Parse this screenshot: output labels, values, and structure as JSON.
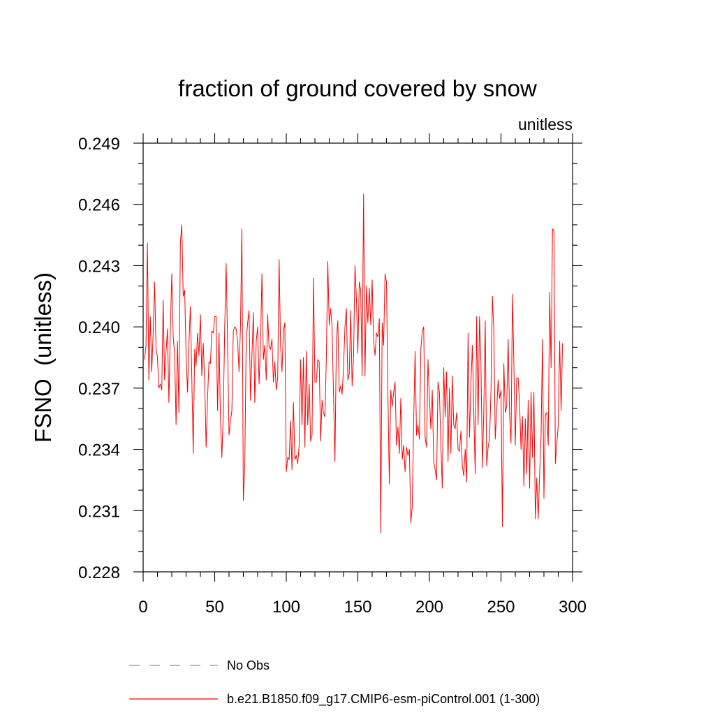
{
  "chart_data": {
    "type": "line",
    "title": "fraction of ground covered by snow",
    "units": "unitless",
    "ylabel": "FSNO  (unitless)",
    "xlabel": "",
    "xlim": [
      0,
      300
    ],
    "ylim": [
      0.228,
      0.249
    ],
    "xticks": [
      "0",
      "50",
      "100",
      "150",
      "200",
      "250",
      "300"
    ],
    "yticks": [
      "0.228",
      "0.231",
      "0.234",
      "0.237",
      "0.240",
      "0.243",
      "0.246",
      "0.249"
    ],
    "legend": [
      {
        "label": "No Obs",
        "style": "dashed",
        "color": "#8a84c8"
      },
      {
        "label": "b.e21.B1850.f09_g17.CMIP6-esm-piControl.001 (1-300)",
        "style": "solid",
        "color": "#ff0000"
      }
    ],
    "series": [
      {
        "name": "b.e21.B1850.f09_g17.CMIP6-esm-piControl.001 (1-300)",
        "color": "#ff0000",
        "x_start": 1,
        "values": [
          0.2384,
          0.2391,
          0.2441,
          0.2374,
          0.2405,
          0.2378,
          0.2397,
          0.2422,
          0.239,
          0.2385,
          0.237,
          0.2372,
          0.2369,
          0.2413,
          0.2374,
          0.2388,
          0.2399,
          0.2363,
          0.2398,
          0.2426,
          0.2395,
          0.2387,
          0.2352,
          0.2393,
          0.2358,
          0.2441,
          0.245,
          0.2415,
          0.2418,
          0.2387,
          0.2368,
          0.2392,
          0.241,
          0.2375,
          0.2338,
          0.2389,
          0.2381,
          0.2397,
          0.2386,
          0.2406,
          0.2376,
          0.2392,
          0.2373,
          0.2341,
          0.2365,
          0.2383,
          0.2382,
          0.2398,
          0.2397,
          0.2405,
          0.2405,
          0.2359,
          0.2397,
          0.2355,
          0.2336,
          0.2358,
          0.24,
          0.2431,
          0.2392,
          0.2347,
          0.2354,
          0.2359,
          0.2398,
          0.24,
          0.2399,
          0.2393,
          0.2378,
          0.24,
          0.2448,
          0.2315,
          0.2332,
          0.2393,
          0.2402,
          0.2408,
          0.2364,
          0.2386,
          0.2407,
          0.2363,
          0.2393,
          0.24,
          0.2372,
          0.2392,
          0.2426,
          0.2384,
          0.2391,
          0.2374,
          0.2406,
          0.239,
          0.2389,
          0.2394,
          0.2373,
          0.2383,
          0.2369,
          0.2375,
          0.2433,
          0.2391,
          0.2378,
          0.2398,
          0.2402,
          0.2329,
          0.2336,
          0.2335,
          0.2354,
          0.233,
          0.2363,
          0.2335,
          0.2337,
          0.2333,
          0.2342,
          0.2384,
          0.2352,
          0.2385,
          0.2341,
          0.2388,
          0.2352,
          0.2372,
          0.2344,
          0.2347,
          0.2424,
          0.2373,
          0.2373,
          0.2384,
          0.2383,
          0.2344,
          0.2364,
          0.2358,
          0.2356,
          0.2385,
          0.2432,
          0.2401,
          0.2409,
          0.24,
          0.2367,
          0.2334,
          0.2393,
          0.2403,
          0.2368,
          0.2371,
          0.2367,
          0.238,
          0.24,
          0.2409,
          0.2374,
          0.2377,
          0.2408,
          0.2371,
          0.2385,
          0.243,
          0.2414,
          0.2387,
          0.2422,
          0.2418,
          0.2376,
          0.2465,
          0.2376,
          0.242,
          0.2402,
          0.2419,
          0.2401,
          0.2423,
          0.2393,
          0.2386,
          0.2397,
          0.2395,
          0.2404,
          0.2299,
          0.2402,
          0.2391,
          0.2426,
          0.2422,
          0.2367,
          0.2323,
          0.2369,
          0.2361,
          0.2368,
          0.2373,
          0.2342,
          0.2351,
          0.2338,
          0.2365,
          0.2335,
          0.2342,
          0.2329,
          0.2341,
          0.2337,
          0.234,
          0.2304,
          0.2312,
          0.2354,
          0.2388,
          0.2347,
          0.2352,
          0.2345,
          0.2389,
          0.2398,
          0.24,
          0.2346,
          0.2341,
          0.2384,
          0.2365,
          0.235,
          0.2369,
          0.2334,
          0.233,
          0.2325,
          0.2373,
          0.2368,
          0.2342,
          0.2321,
          0.238,
          0.2356,
          0.2378,
          0.2334,
          0.237,
          0.2338,
          0.2376,
          0.2352,
          0.235,
          0.2358,
          0.234,
          0.2339,
          0.2349,
          0.2332,
          0.2327,
          0.234,
          0.2324,
          0.2397,
          0.2346,
          0.2372,
          0.2391,
          0.2358,
          0.2328,
          0.2405,
          0.2352,
          0.2405,
          0.2382,
          0.2331,
          0.2359,
          0.2403,
          0.2332,
          0.2341,
          0.2345,
          0.2368,
          0.2415,
          0.2398,
          0.2345,
          0.2359,
          0.2374,
          0.2365,
          0.2369,
          0.2302,
          0.2382,
          0.2358,
          0.2361,
          0.2394,
          0.2357,
          0.2343,
          0.2416,
          0.2382,
          0.2342,
          0.2375,
          0.2375,
          0.2362,
          0.234,
          0.2356,
          0.2322,
          0.2355,
          0.2328,
          0.2364,
          0.2321,
          0.2368,
          0.2336,
          0.2368,
          0.2306,
          0.2326,
          0.2306,
          0.2328,
          0.2347,
          0.2394,
          0.2316,
          0.2357,
          0.2358,
          0.2342,
          0.2417,
          0.238,
          0.2448,
          0.2447,
          0.2333,
          0.2343,
          0.2352,
          0.2393,
          0.2359,
          0.2392
        ]
      }
    ]
  }
}
